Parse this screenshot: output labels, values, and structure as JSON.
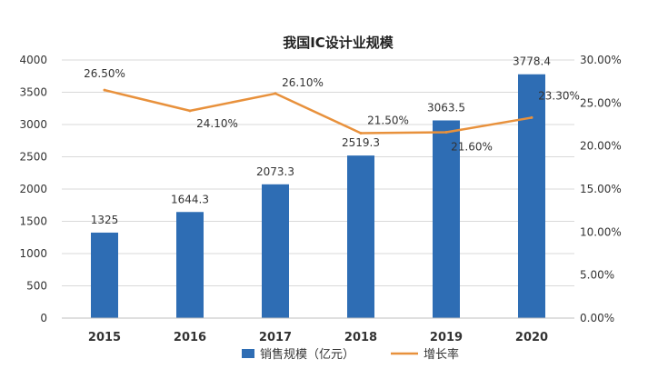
{
  "chart_data": {
    "type": "bar",
    "title": "我国IC设计业规模",
    "categories": [
      "2015",
      "2016",
      "2017",
      "2018",
      "2019",
      "2020"
    ],
    "series": [
      {
        "name": "销售规模（亿元）",
        "type": "bar",
        "axis": "left",
        "values": [
          1325,
          1644.3,
          2073.3,
          2519.3,
          3063.5,
          3778.4
        ],
        "labels": [
          "1325",
          "1644.3",
          "2073.3",
          "2519.3",
          "3063.5",
          "3778.4"
        ]
      },
      {
        "name": "增长率",
        "type": "line",
        "axis": "right",
        "values": [
          26.5,
          24.1,
          26.1,
          21.5,
          21.6,
          23.3
        ],
        "labels": [
          "26.50%",
          "24.10%",
          "26.10%",
          "21.50%",
          "21.60%",
          "23.30%"
        ]
      }
    ],
    "y_left": {
      "ylim": [
        0,
        4000
      ],
      "ticks": [
        "0",
        "500",
        "1000",
        "1500",
        "2000",
        "2500",
        "3000",
        "3500",
        "4000"
      ]
    },
    "y_right": {
      "ylim": [
        0,
        30
      ],
      "ticks": [
        "0.00%",
        "5.00%",
        "10.00%",
        "15.00%",
        "20.00%",
        "25.00%",
        "30.00%"
      ]
    },
    "grid": true,
    "legend": "bottom-center",
    "colors": {
      "bar": "#2E6DB4",
      "line": "#E8913C",
      "grid": "#D9D9D9",
      "text": "#333333"
    }
  }
}
